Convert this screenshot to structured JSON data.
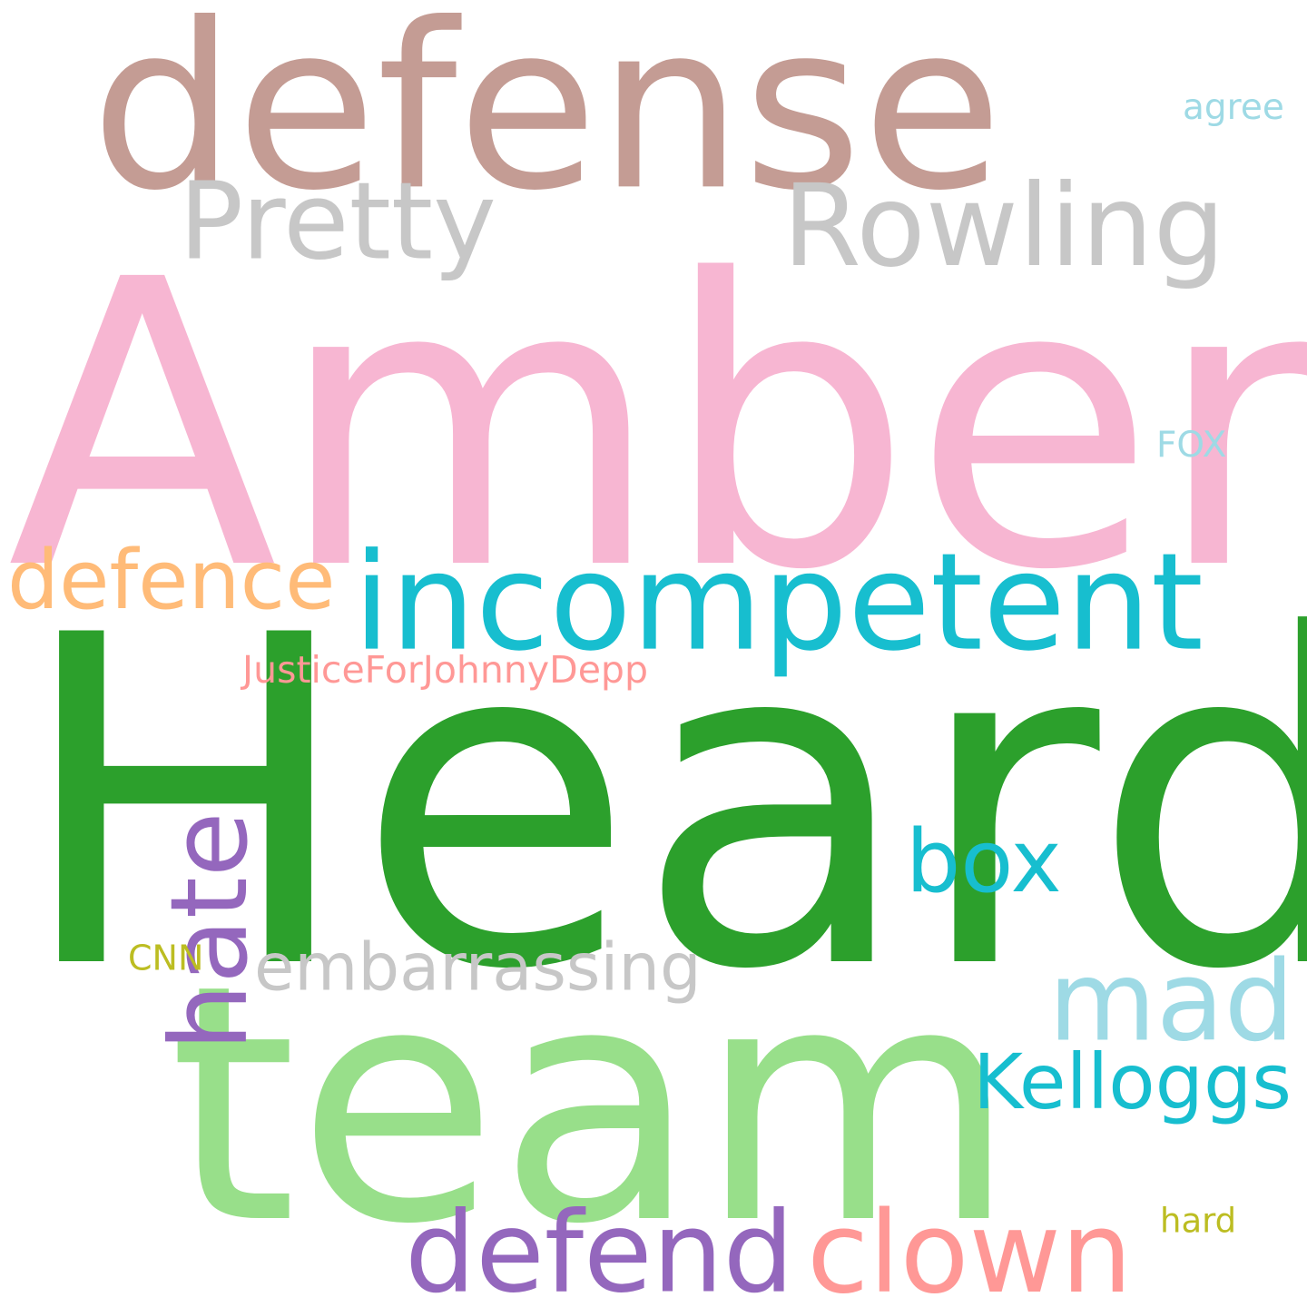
{
  "words": [
    {
      "key": "heard",
      "text": "Heard",
      "color": "#2ca02c"
    },
    {
      "key": "amber",
      "text": "Amber",
      "color": "#f7b6d2"
    },
    {
      "key": "team",
      "text": "team",
      "color": "#98df8a"
    },
    {
      "key": "defense",
      "text": "defense",
      "color": "#c49c94"
    },
    {
      "key": "incompetent",
      "text": "incompetent",
      "color": "#17becf"
    },
    {
      "key": "rowling",
      "text": "Rowling",
      "color": "#c7c7c7"
    },
    {
      "key": "pretty",
      "text": "Pretty",
      "color": "#c7c7c7"
    },
    {
      "key": "clown",
      "text": "clown",
      "color": "#ff9896"
    },
    {
      "key": "defend",
      "text": "defend",
      "color": "#9467bd"
    },
    {
      "key": "mad",
      "text": "mad",
      "color": "#9edae5"
    },
    {
      "key": "hate",
      "text": "hate",
      "color": "#9467bd"
    },
    {
      "key": "box",
      "text": "box",
      "color": "#17becf"
    },
    {
      "key": "kelloggs",
      "text": "Kelloggs",
      "color": "#17becf"
    },
    {
      "key": "defence",
      "text": "defence",
      "color": "#ffbb78"
    },
    {
      "key": "embarrassing",
      "text": "embarrassing",
      "color": "#c7c7c7"
    },
    {
      "key": "justice",
      "text": "JusticeForJohnnyDepp",
      "color": "#ff9896"
    },
    {
      "key": "agree",
      "text": "agree",
      "color": "#9edae5"
    },
    {
      "key": "fox",
      "text": "FOX",
      "color": "#9edae5"
    },
    {
      "key": "cnn",
      "text": "CNN",
      "color": "#bcbd22"
    },
    {
      "key": "hard",
      "text": "hard",
      "color": "#bcbd22"
    }
  ]
}
